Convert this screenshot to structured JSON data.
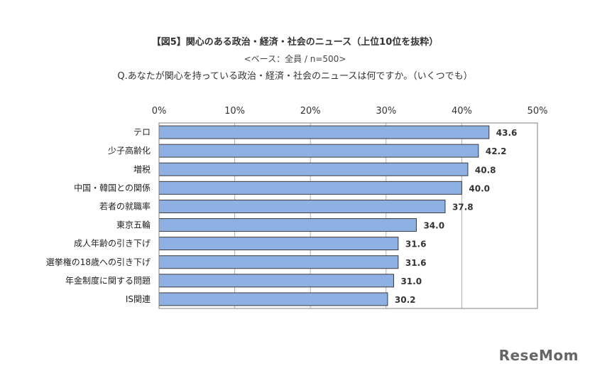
{
  "header": {
    "title": "【図5】関心のある政治・経済・社会のニュース（上位10位を抜粋）",
    "subtitle": "<ベース：全員 / n=500>",
    "question": "Q.あなたが関心を持っている政治・経済・社会のニュースは何ですか。（いくつでも）"
  },
  "chart_data": {
    "type": "bar",
    "orientation": "horizontal",
    "categories": [
      "テロ",
      "少子高齢化",
      "増税",
      "中国・韓国との関係",
      "若者の就職率",
      "東京五輪",
      "成人年齢の引き下げ",
      "選挙権の18歳への引き下げ",
      "年金制度に関する問題",
      "IS関連"
    ],
    "values": [
      43.6,
      42.2,
      40.8,
      40.0,
      37.8,
      34.0,
      31.6,
      31.6,
      31.0,
      30.2
    ],
    "value_labels": [
      "43.6",
      "42.2",
      "40.8",
      "40.0",
      "37.8",
      "34.0",
      "31.6",
      "31.6",
      "31.0",
      "30.2"
    ],
    "xlim": [
      0,
      50
    ],
    "x_ticks": [
      "0%",
      "10%",
      "20%",
      "30%",
      "40%",
      "50%"
    ],
    "grid": true,
    "bar_color": "#8fb0e3",
    "bar_border": "#3a3a3a"
  },
  "branding": {
    "logo_text": "ReseMom"
  }
}
